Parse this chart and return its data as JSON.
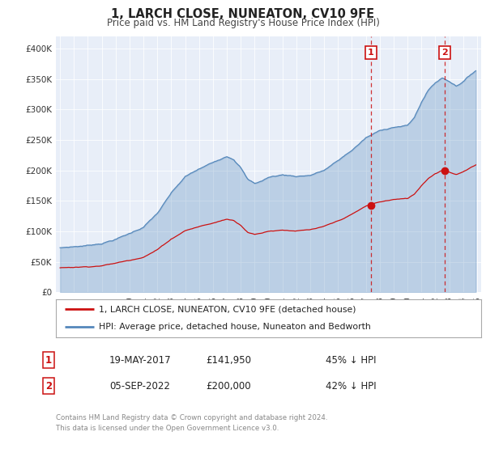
{
  "title": "1, LARCH CLOSE, NUNEATON, CV10 9FE",
  "subtitle": "Price paid vs. HM Land Registry's House Price Index (HPI)",
  "ylim": [
    0,
    420000
  ],
  "yticks": [
    0,
    50000,
    100000,
    150000,
    200000,
    250000,
    300000,
    350000,
    400000
  ],
  "ytick_labels": [
    "£0",
    "£50K",
    "£100K",
    "£150K",
    "£200K",
    "£250K",
    "£300K",
    "£350K",
    "£400K"
  ],
  "hpi_color": "#5588bb",
  "price_color": "#cc1111",
  "sale1_date_num": 2017.37,
  "sale1_price": 141950,
  "sale2_date_num": 2022.67,
  "sale2_price": 200000,
  "legend1": "1, LARCH CLOSE, NUNEATON, CV10 9FE (detached house)",
  "legend2": "HPI: Average price, detached house, Nuneaton and Bedworth",
  "table_row1_num": "1",
  "table_row1_date": "19-MAY-2017",
  "table_row1_price": "£141,950",
  "table_row1_hpi": "45% ↓ HPI",
  "table_row2_num": "2",
  "table_row2_date": "05-SEP-2022",
  "table_row2_price": "£200,000",
  "table_row2_hpi": "42% ↓ HPI",
  "footer1": "Contains HM Land Registry data © Crown copyright and database right 2024.",
  "footer2": "This data is licensed under the Open Government Licence v3.0.",
  "background_color": "#ffffff",
  "plot_bg_color": "#e8eef8"
}
